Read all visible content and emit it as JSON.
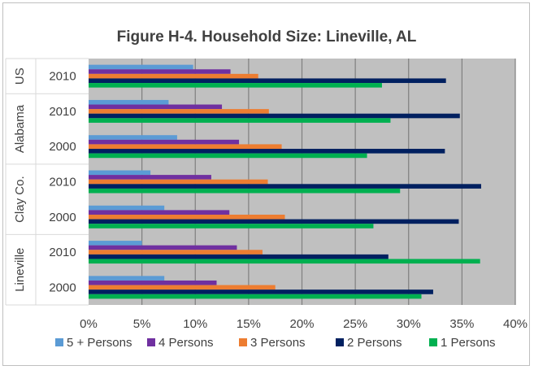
{
  "chart_data": {
    "type": "bar",
    "orientation": "horizontal",
    "title": "Figure H-4. Household Size: Lineville, AL",
    "groups": [
      {
        "name": "US",
        "rows": [
          "2010"
        ]
      },
      {
        "name": "Alabama",
        "rows": [
          "2010",
          "2000"
        ]
      },
      {
        "name": "Clay Co.",
        "rows": [
          "2010",
          "2000"
        ]
      },
      {
        "name": "Lineville",
        "rows": [
          "2010",
          "2000"
        ]
      }
    ],
    "categories": [
      "US 2010",
      "Alabama 2010",
      "Alabama 2000",
      "Clay Co. 2010",
      "Clay Co. 2000",
      "Lineville 2010",
      "Lineville 2000"
    ],
    "series": [
      {
        "name": "5 + Persons",
        "color": "#5b9bd5",
        "values": [
          9.8,
          7.5,
          8.3,
          5.8,
          7.1,
          5.0,
          7.1
        ]
      },
      {
        "name": "4 Persons",
        "color": "#7030a0",
        "values": [
          13.3,
          12.5,
          14.1,
          11.5,
          13.2,
          13.9,
          12.0
        ]
      },
      {
        "name": "3 Persons",
        "color": "#ed7d31",
        "values": [
          15.9,
          16.9,
          18.1,
          16.8,
          18.4,
          16.3,
          17.5
        ]
      },
      {
        "name": "2 Persons",
        "color": "#002060",
        "values": [
          33.5,
          34.8,
          33.4,
          36.8,
          34.7,
          28.1,
          32.3
        ]
      },
      {
        "name": "1 Persons",
        "color": "#00b050",
        "values": [
          27.5,
          28.3,
          26.1,
          29.2,
          26.7,
          36.7,
          31.2
        ]
      }
    ],
    "x_ticks": [
      "0%",
      "5%",
      "10%",
      "15%",
      "20%",
      "25%",
      "30%",
      "35%",
      "40%"
    ],
    "xlim": [
      0,
      40
    ],
    "grid": true,
    "plot_background": "#c0c0c0",
    "legend_position": "bottom"
  }
}
